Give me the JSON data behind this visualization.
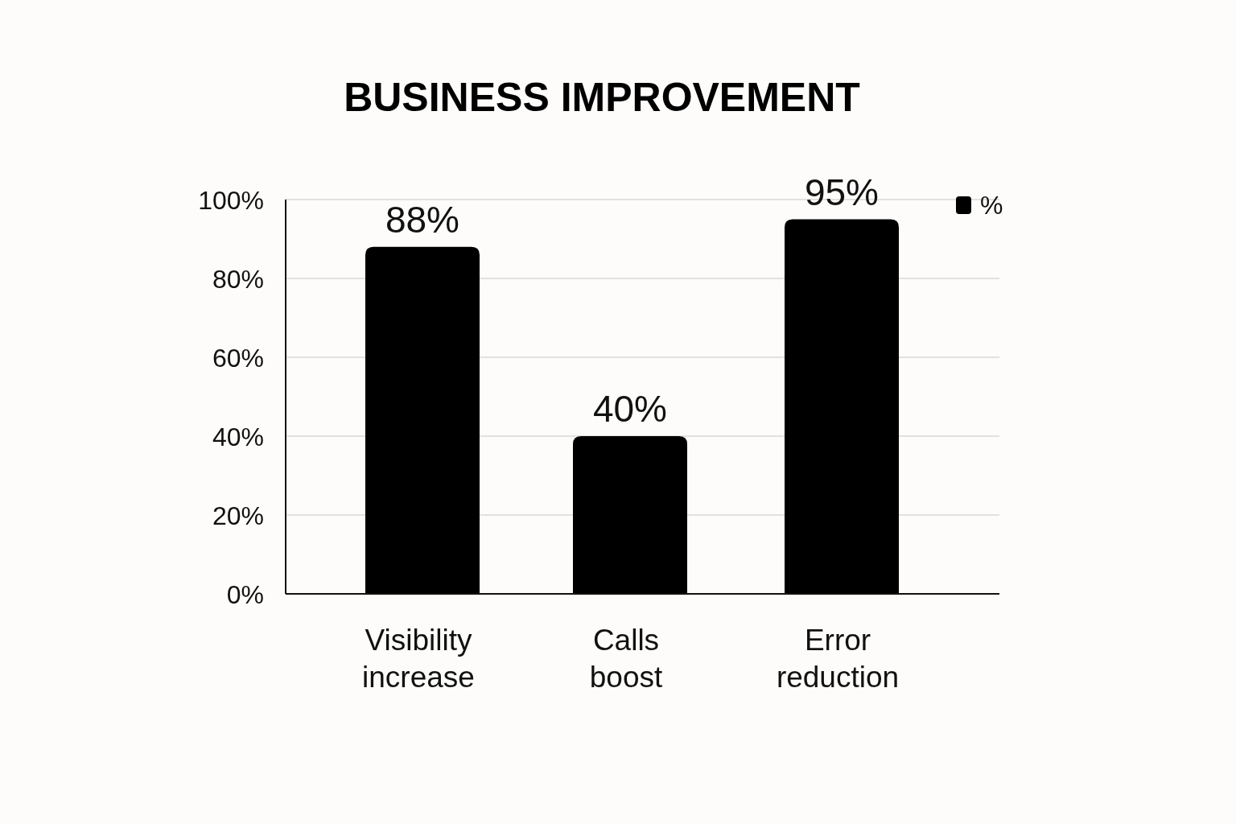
{
  "chart_data": {
    "type": "bar",
    "title": "BUSINESS IMPROVEMENT",
    "categories": [
      "Visibility increase",
      "Calls boost",
      "Error reduction"
    ],
    "series": [
      {
        "name": "%",
        "color": "#000000",
        "values": [
          88,
          40,
          95
        ],
        "value_labels": [
          "88%",
          "40%",
          "95%"
        ]
      }
    ],
    "ylim": [
      0,
      100
    ],
    "yticks": [
      {
        "value": 0,
        "label": "0%"
      },
      {
        "value": 20,
        "label": "20%"
      },
      {
        "value": 40,
        "label": "40%"
      },
      {
        "value": 60,
        "label": "60%"
      },
      {
        "value": 80,
        "label": "80%"
      },
      {
        "value": 100,
        "label": "100%"
      }
    ],
    "grid": "y",
    "legend": "top right"
  }
}
